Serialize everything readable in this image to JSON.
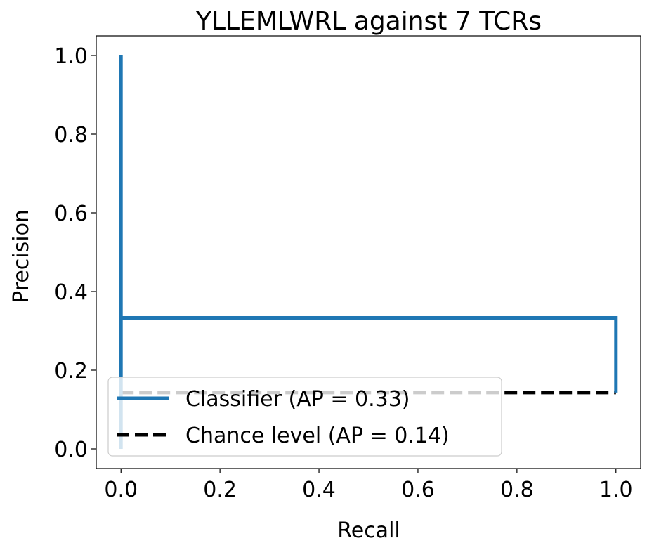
{
  "chart_data": {
    "type": "line",
    "title": "YLLEMLWRL against 7 TCRs",
    "xlabel": "Recall",
    "ylabel": "Precision",
    "xlim": [
      -0.05,
      1.05
    ],
    "ylim": [
      -0.05,
      1.05
    ],
    "xticks": [
      0.0,
      0.2,
      0.4,
      0.6,
      0.8,
      1.0
    ],
    "yticks": [
      0.0,
      0.2,
      0.4,
      0.6,
      0.8,
      1.0
    ],
    "xtick_labels": [
      "0.0",
      "0.2",
      "0.4",
      "0.6",
      "0.8",
      "1.0"
    ],
    "ytick_labels": [
      "0.0",
      "0.2",
      "0.4",
      "0.6",
      "0.8",
      "1.0"
    ],
    "grid": false,
    "legend_position": "lower-left",
    "series": [
      {
        "name": "Classifier (AP = 0.33)",
        "style": "solid",
        "color": "#1f77b4",
        "x": [
          0.0,
          0.0,
          0.0,
          1.0,
          1.0
        ],
        "y": [
          1.0,
          0.0,
          0.333,
          0.333,
          0.143
        ]
      },
      {
        "name": "Chance level (AP = 0.14)",
        "style": "dashed",
        "color": "#000000",
        "x": [
          0.0,
          1.0
        ],
        "y": [
          0.143,
          0.143
        ]
      }
    ]
  }
}
